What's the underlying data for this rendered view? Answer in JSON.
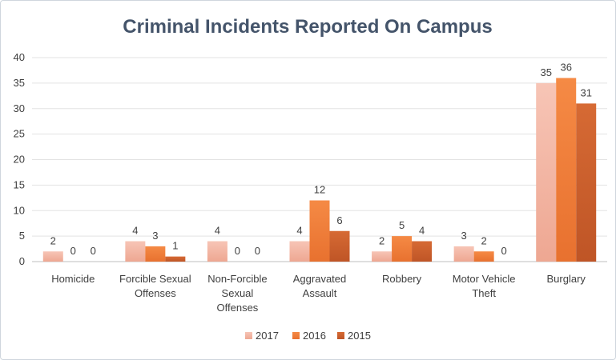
{
  "chart_data": {
    "type": "bar",
    "title": "Criminal Incidents Reported On Campus",
    "xlabel": "",
    "ylabel": "",
    "ylim": [
      0,
      40
    ],
    "yticks": [
      0,
      5,
      10,
      15,
      20,
      25,
      30,
      35,
      40
    ],
    "grid": true,
    "legend_position": "bottom",
    "categories": [
      [
        "Homicide"
      ],
      [
        "Forcible Sexual",
        "Offenses"
      ],
      [
        "Non-Forcible",
        "Sexual",
        "Offenses"
      ],
      [
        "Aggravated",
        "Assault"
      ],
      [
        "Robbery"
      ],
      [
        "Motor Vehicle",
        "Theft"
      ],
      [
        "Burglary"
      ]
    ],
    "series": [
      {
        "name": "2017",
        "color": "#f4b6a4",
        "values": [
          2,
          4,
          4,
          4,
          2,
          3,
          35
        ]
      },
      {
        "name": "2016",
        "color": "#f07d3a",
        "values": [
          0,
          3,
          0,
          12,
          5,
          2,
          36
        ]
      },
      {
        "name": "2015",
        "color": "#cc5f2c",
        "values": [
          0,
          1,
          0,
          6,
          4,
          0,
          31
        ]
      }
    ]
  }
}
